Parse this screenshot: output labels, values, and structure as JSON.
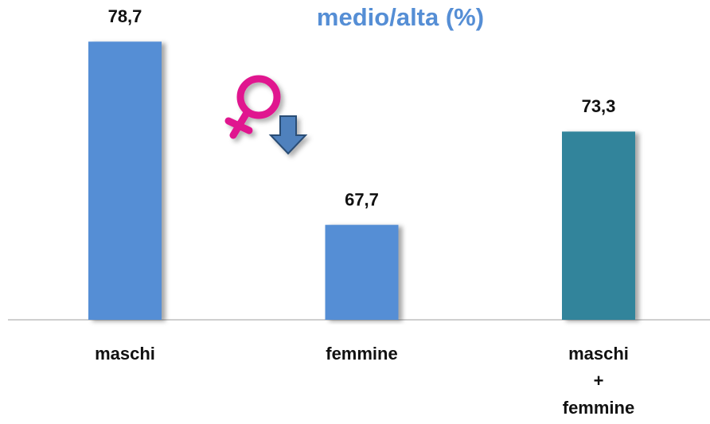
{
  "chart_data": {
    "type": "bar",
    "title": "medio/alta (%)",
    "categories": [
      "maschi",
      "femmine",
      "maschi\n+\nfemmine"
    ],
    "values": [
      78.7,
      67.7,
      73.3
    ],
    "value_labels": [
      "78,7",
      "67,7",
      "73,3"
    ],
    "colors": [
      "#558ed5",
      "#558ed5",
      "#31849b"
    ],
    "ylim": [
      62,
      81.2
    ]
  }
}
